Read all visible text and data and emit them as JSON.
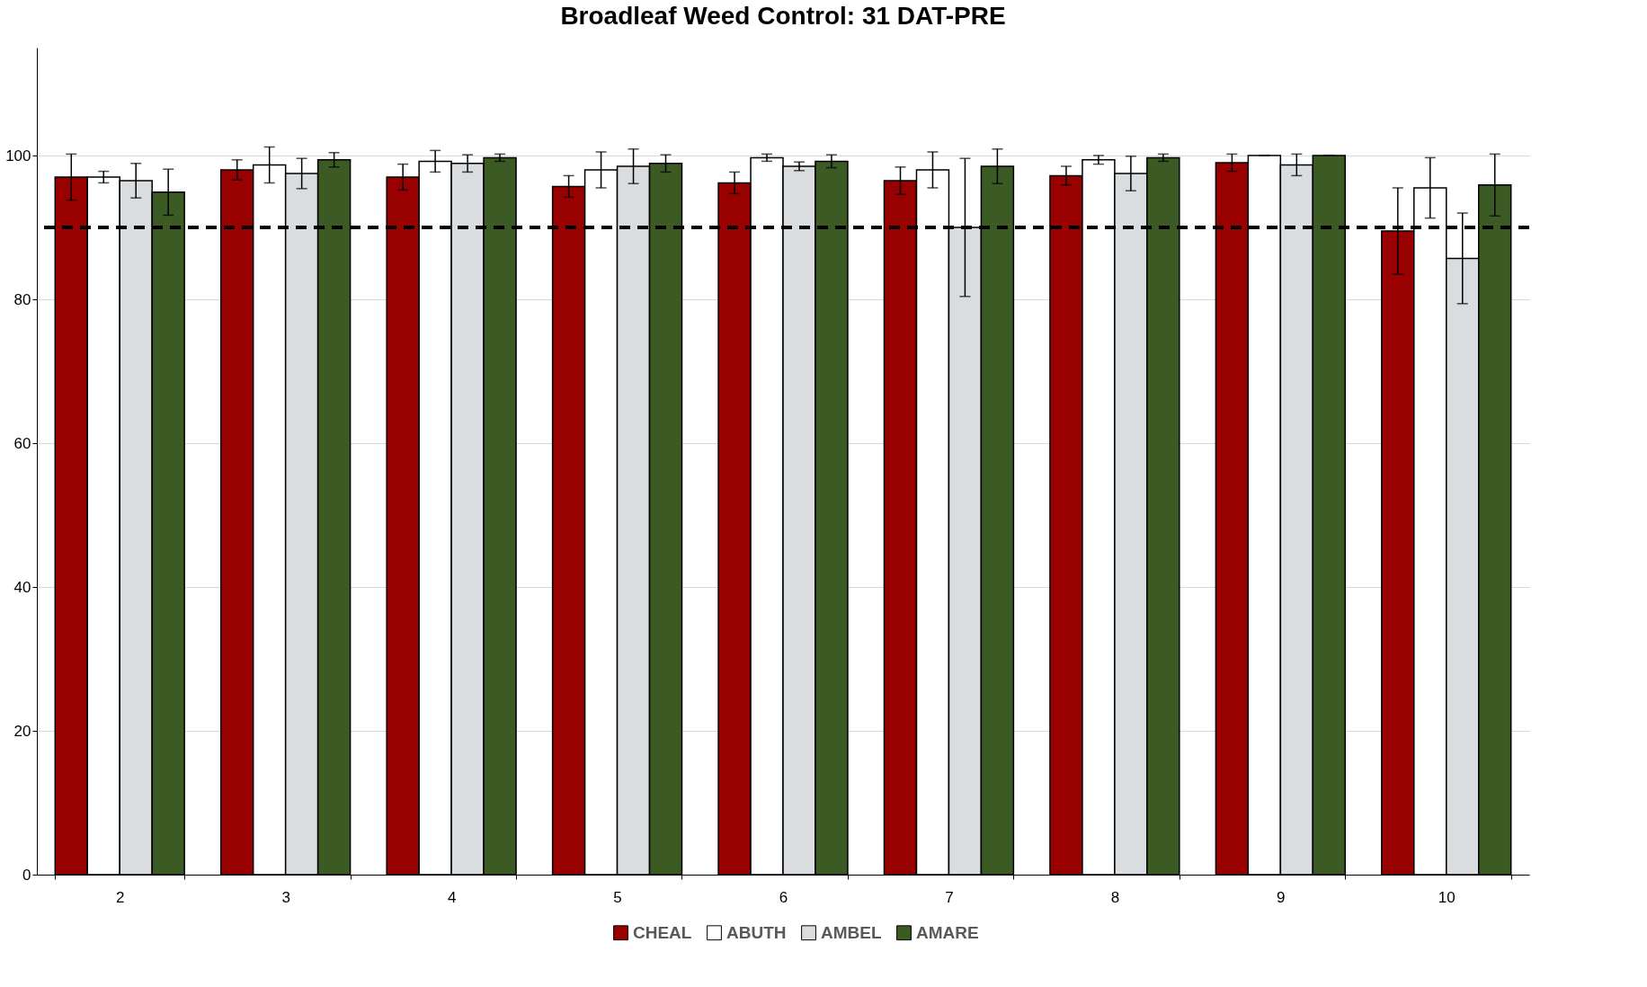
{
  "chart_data": {
    "type": "bar",
    "title": "Broadleaf Weed Control: 31 DAT-PRE",
    "categories": [
      "2",
      "3",
      "4",
      "5",
      "6",
      "7",
      "8",
      "9",
      "10"
    ],
    "series": [
      {
        "name": "CHEAL",
        "color": "#990000",
        "values": [
          97,
          98,
          97,
          95.7,
          96.2,
          96.5,
          97.2,
          99,
          89.5
        ],
        "errors": [
          3.2,
          1.4,
          1.8,
          1.5,
          1.5,
          1.9,
          1.3,
          1.2,
          6
        ]
      },
      {
        "name": "ABUTH",
        "color": "#ffffff",
        "values": [
          97,
          98.7,
          99.2,
          98,
          99.7,
          98,
          99.4,
          100,
          95.5
        ],
        "errors": [
          0.8,
          2.5,
          1.5,
          2.5,
          0.5,
          2.5,
          0.6,
          0,
          4.2
        ]
      },
      {
        "name": "AMBEL",
        "color": "#d9dde0",
        "values": [
          96.5,
          97.5,
          98.9,
          98.5,
          98.5,
          90,
          97.5,
          98.7,
          85.7
        ],
        "errors": [
          2.4,
          2.1,
          1.2,
          2.4,
          0.6,
          9.6,
          2.4,
          1.5,
          6.3
        ]
      },
      {
        "name": "AMARE",
        "color": "#3b5a24",
        "values": [
          94.9,
          99.4,
          99.7,
          98.9,
          99.2,
          98.5,
          99.7,
          100,
          95.9
        ],
        "errors": [
          3.2,
          1,
          0.5,
          1.2,
          0.9,
          2.4,
          0.5,
          0,
          4.3
        ]
      }
    ],
    "ylim": [
      0,
      115
    ],
    "yticks": [
      0,
      20,
      40,
      60,
      80,
      100
    ],
    "grid": "y",
    "legend": "bottom",
    "ref_lines": [
      {
        "axis": "y",
        "value": 90,
        "color": "#000000",
        "line_style": "dashed"
      }
    ]
  }
}
